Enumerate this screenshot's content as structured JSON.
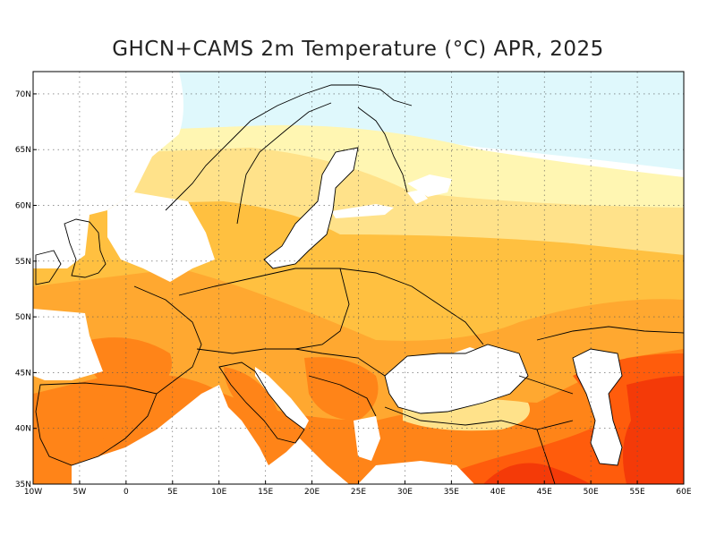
{
  "title": "GHCN+CAMS 2m Temperature (°C) APR, 2025",
  "map": {
    "projection": "equirectangular",
    "lon_range": [
      -10,
      60
    ],
    "lat_range": [
      35,
      72
    ],
    "grid": "dotted",
    "lon_ticks": [
      {
        "value": -10,
        "label": "10W"
      },
      {
        "value": -5,
        "label": "5W"
      },
      {
        "value": 0,
        "label": "0"
      },
      {
        "value": 5,
        "label": "5E"
      },
      {
        "value": 10,
        "label": "10E"
      },
      {
        "value": 15,
        "label": "15E"
      },
      {
        "value": 20,
        "label": "20E"
      },
      {
        "value": 25,
        "label": "25E"
      },
      {
        "value": 30,
        "label": "30E"
      },
      {
        "value": 35,
        "label": "35E"
      },
      {
        "value": 40,
        "label": "40E"
      },
      {
        "value": 45,
        "label": "45E"
      },
      {
        "value": 50,
        "label": "50E"
      },
      {
        "value": 55,
        "label": "55E"
      },
      {
        "value": 60,
        "label": "60E"
      }
    ],
    "lat_ticks": [
      {
        "value": 35,
        "label": "35N"
      },
      {
        "value": 40,
        "label": "40N"
      },
      {
        "value": 45,
        "label": "45N"
      },
      {
        "value": 50,
        "label": "50N"
      },
      {
        "value": 55,
        "label": "55N"
      },
      {
        "value": 60,
        "label": "60N"
      },
      {
        "value": 65,
        "label": "65N"
      },
      {
        "value": 70,
        "label": "70N"
      }
    ]
  },
  "colors": {
    "cold": "#b8eaf8",
    "cool": "#dff8fc",
    "pale": "#fff6b2",
    "light": "#ffe28a",
    "mild": "#ffc040",
    "warm": "#ffa830",
    "hot": "#ff8418",
    "very_hot": "#ff5c0c",
    "hottest": "#f43a08",
    "sea": "#ffffff",
    "border": "#000000"
  }
}
